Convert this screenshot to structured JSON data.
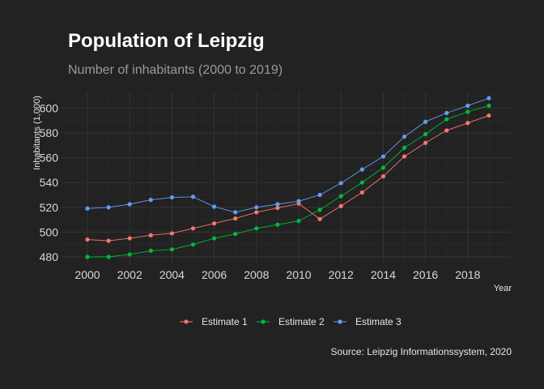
{
  "chart_data": {
    "type": "line",
    "title": "Population of Leipzig",
    "subtitle": "Number of inhabitants (2000 to 2019)",
    "xlabel": "Year",
    "ylabel": "Inhabitants (1,000)",
    "caption": "Source: Leipzig Informationssystem, 2020",
    "xlim": [
      2000,
      2019
    ],
    "ylim": [
      476,
      612
    ],
    "x_ticks": [
      2000,
      2002,
      2004,
      2006,
      2008,
      2010,
      2012,
      2014,
      2016,
      2018
    ],
    "y_ticks": [
      480,
      500,
      520,
      540,
      560,
      580,
      600
    ],
    "grid": true,
    "legend_position": "bottom",
    "x": [
      2000,
      2001,
      2002,
      2003,
      2004,
      2005,
      2006,
      2007,
      2008,
      2009,
      2010,
      2011,
      2012,
      2013,
      2014,
      2015,
      2016,
      2017,
      2018,
      2019
    ],
    "series": [
      {
        "name": "Estimate 1",
        "color": "#F8766D",
        "values": [
          494,
          493,
          495,
          497.5,
          499,
          503,
          507,
          511,
          516,
          519.5,
          523,
          510.5,
          521,
          532,
          545,
          561,
          572,
          582,
          588,
          594
        ]
      },
      {
        "name": "Estimate 2",
        "color": "#00BA38",
        "values": [
          480,
          480,
          482,
          485,
          486,
          490,
          495,
          498.5,
          503,
          506,
          509,
          518,
          529,
          540,
          552,
          568,
          579,
          591,
          597,
          602
        ]
      },
      {
        "name": "Estimate 3",
        "color": "#619CFF",
        "values": [
          519,
          520,
          522.5,
          526,
          528,
          528.5,
          520.5,
          516,
          520,
          522.5,
          525,
          530,
          539.5,
          550.5,
          561,
          577,
          589,
          596,
          602,
          608
        ]
      }
    ]
  }
}
